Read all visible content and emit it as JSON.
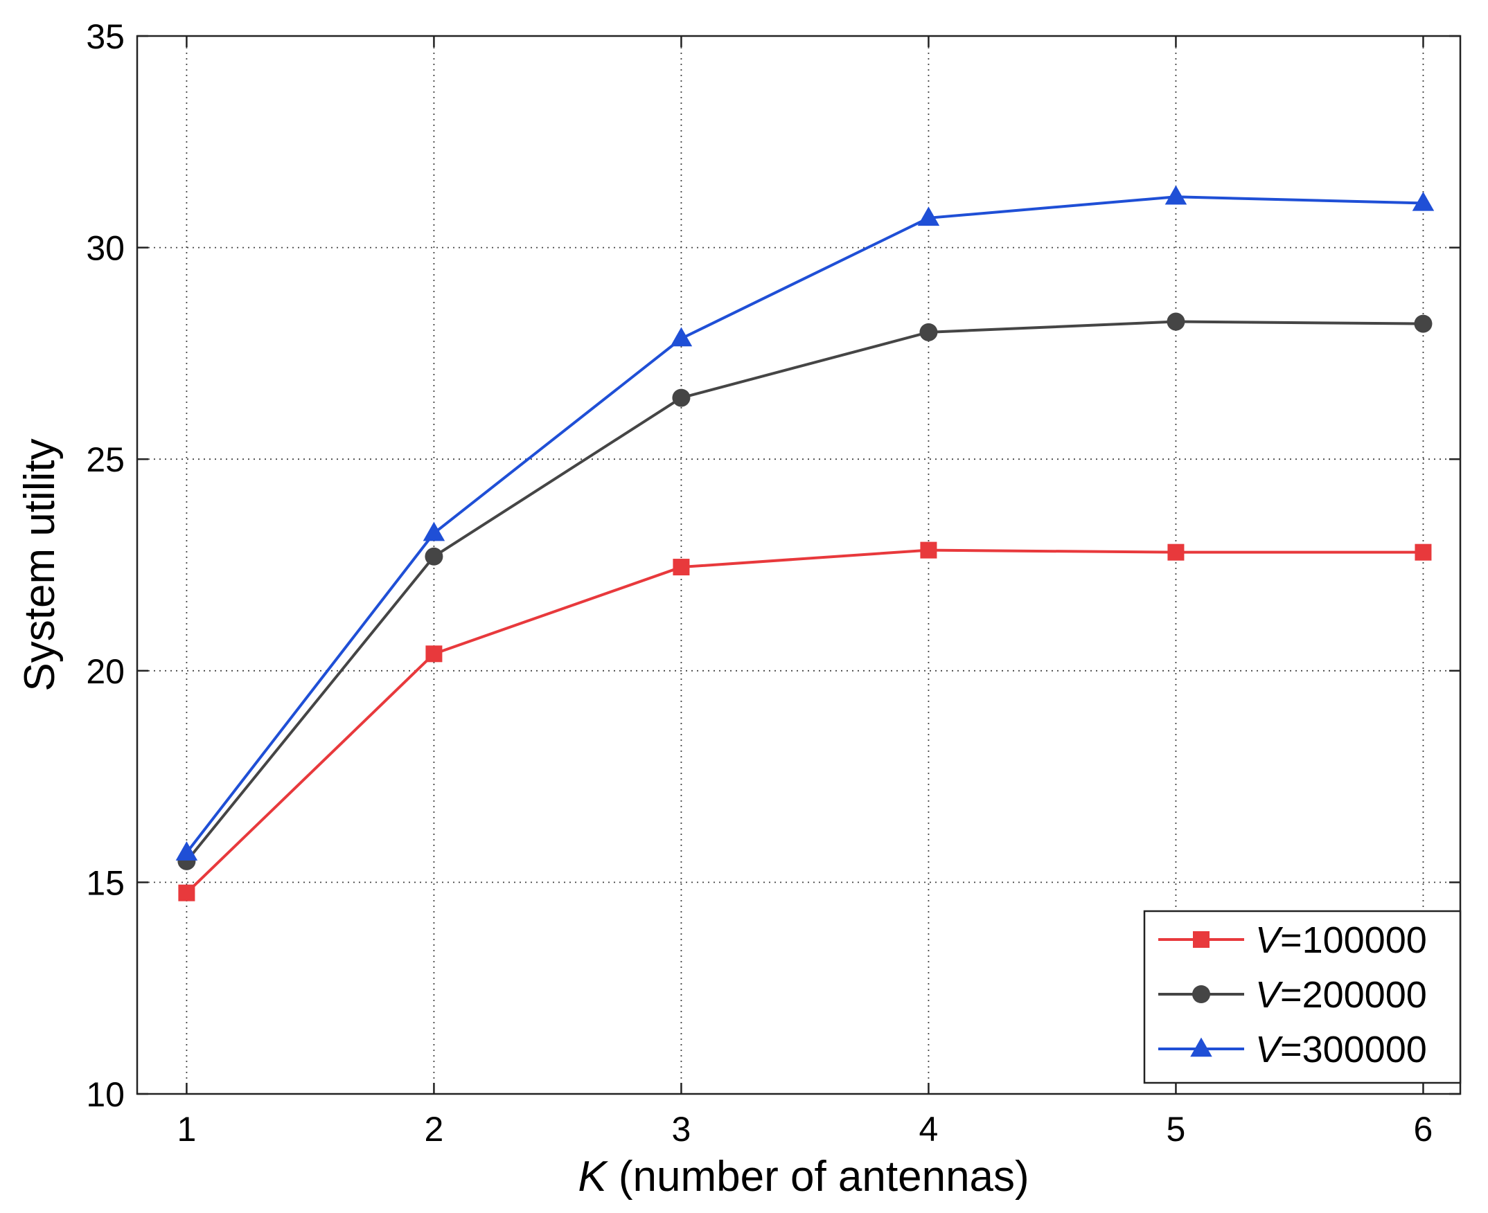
{
  "chart_data": {
    "type": "line",
    "x": [
      1,
      2,
      3,
      4,
      5,
      6
    ],
    "xticks": [
      "1",
      "2",
      "3",
      "4",
      "5",
      "6"
    ],
    "yticks": [
      "10",
      "15",
      "20",
      "25",
      "30",
      "35"
    ],
    "xlim": [
      0.8,
      6.15
    ],
    "ylim": [
      10,
      35
    ],
    "grid": true,
    "legend_position": "bottom-right",
    "xlabel_var": "K",
    "xlabel_rest": " (number of antennas)",
    "ylabel": "System utility",
    "series": [
      {
        "name_var": "V",
        "name_rest": "=100000",
        "color": "#e8393c",
        "marker": "square",
        "values": [
          14.75,
          20.4,
          22.45,
          22.85,
          22.8,
          22.8
        ]
      },
      {
        "name_var": "V",
        "name_rest": "=200000",
        "color": "#454545",
        "marker": "circle",
        "values": [
          15.5,
          22.7,
          26.45,
          28.0,
          28.25,
          28.2
        ]
      },
      {
        "name_var": "V",
        "name_rest": "=300000",
        "color": "#1f4fd6",
        "marker": "triangle",
        "values": [
          15.7,
          23.25,
          27.85,
          30.7,
          31.2,
          31.05
        ]
      }
    ]
  }
}
